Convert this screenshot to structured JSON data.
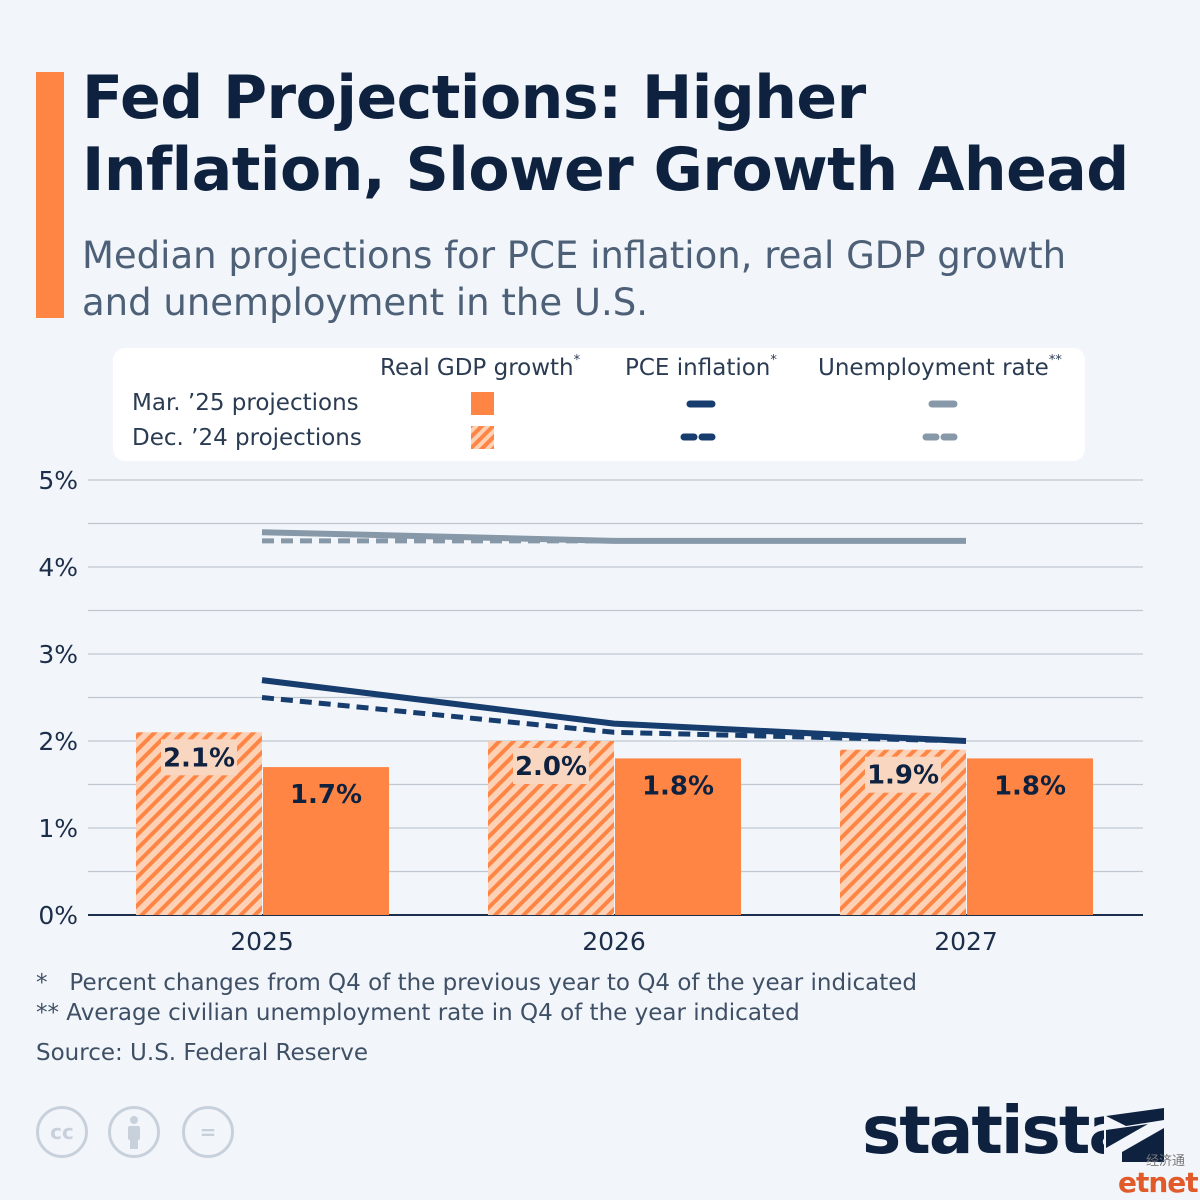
{
  "header": {
    "title": "Fed Projections: Higher Inflation, Slower Growth Ahead",
    "subtitle": "Median projections for PCE inflation, real GDP growth and unemployment in the U.S."
  },
  "legend": {
    "col_gdp": "Real GDP growth",
    "col_gdp_mark": "*",
    "col_pce": "PCE inflation",
    "col_pce_mark": "*",
    "col_unemp": "Unemployment rate",
    "col_unemp_mark": "**",
    "row_mar": "Mar. ’25 projections",
    "row_dec": "Dec. ’24 projections"
  },
  "colors": {
    "gdp_bar": "#ff8545",
    "gdp_hatch_light": "#fcd1b5",
    "pce_line": "#173c6e",
    "unemp_line": "#8798a8",
    "grid": "#bfc8d1",
    "label_bg": "#f9d6c0"
  },
  "chart_data": {
    "type": "bar",
    "categories": [
      "2025",
      "2026",
      "2027"
    ],
    "ylim": [
      0,
      5
    ],
    "yticks": [
      "0%",
      "1%",
      "2%",
      "3%",
      "4%",
      "5%"
    ],
    "grid": true,
    "series": [
      {
        "name": "Real GDP growth, Dec. ’24 projections",
        "kind": "bar",
        "values": [
          2.1,
          2.0,
          1.9
        ],
        "labels": [
          "2.1%",
          "2.0%",
          "1.9%"
        ]
      },
      {
        "name": "Real GDP growth, Mar. ’25 projections",
        "kind": "bar",
        "values": [
          1.7,
          1.8,
          1.8
        ],
        "labels": [
          "1.7%",
          "1.8%",
          "1.8%"
        ]
      },
      {
        "name": "PCE inflation, Mar. ’25 projections",
        "kind": "line",
        "values": [
          2.7,
          2.2,
          2.0
        ]
      },
      {
        "name": "PCE inflation, Dec. ’24 projections",
        "kind": "line",
        "values": [
          2.5,
          2.1,
          2.0
        ]
      },
      {
        "name": "Unemployment rate, Mar. ’25 projections",
        "kind": "line",
        "values": [
          4.4,
          4.3,
          4.3
        ]
      },
      {
        "name": "Unemployment rate, Dec. ’24 projections",
        "kind": "line",
        "values": [
          4.3,
          4.3,
          4.3
        ]
      }
    ]
  },
  "footer": {
    "note1": "*   Percent changes from Q4 of the previous year to Q4 of the year indicated",
    "note2": "** Average civilian unemployment rate in Q4 of the year indicated",
    "source": "Source: U.S. Federal Reserve",
    "license_cc": "cc",
    "license_eq": "=",
    "brand": "statista",
    "corner_cn": "经济通",
    "corner_brand": "etnet"
  }
}
